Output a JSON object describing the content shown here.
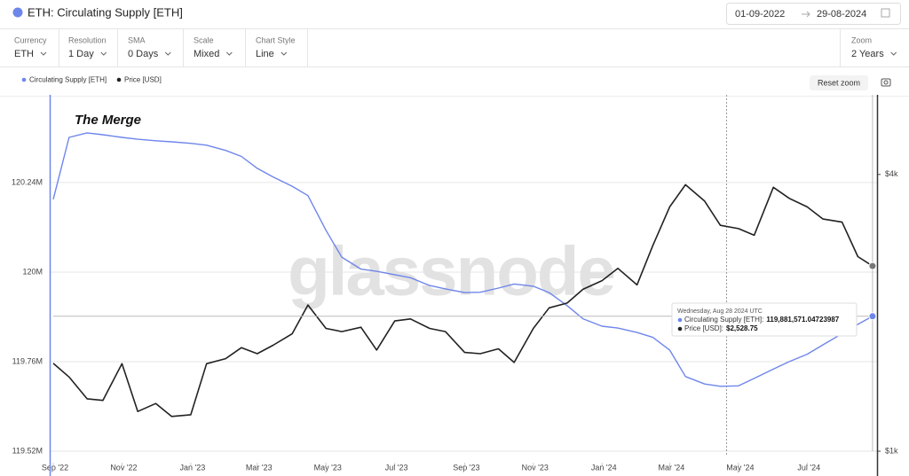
{
  "header": {
    "title": "ETH: Circulating Supply [ETH]",
    "date_from": "01-09-2022",
    "date_to": "29-08-2024"
  },
  "controls": [
    {
      "label": "Currency",
      "value": "ETH"
    },
    {
      "label": "Resolution",
      "value": "1 Day"
    },
    {
      "label": "SMA",
      "value": "0 Days"
    },
    {
      "label": "Scale",
      "value": "Mixed"
    },
    {
      "label": "Chart Style",
      "value": "Line"
    },
    {
      "label": "Zoom",
      "value": "2 Years"
    }
  ],
  "reset_zoom": "Reset zoom",
  "chart_data": {
    "type": "line",
    "annotation": "The Merge",
    "watermark": "glassnode",
    "x": [
      "2022-09-01",
      "2022-09-15",
      "2022-10-01",
      "2022-10-15",
      "2022-11-01",
      "2022-11-15",
      "2022-12-01",
      "2022-12-15",
      "2023-01-01",
      "2023-01-15",
      "2023-02-01",
      "2023-02-15",
      "2023-03-01",
      "2023-03-15",
      "2023-04-01",
      "2023-04-15",
      "2023-05-01",
      "2023-05-15",
      "2023-06-01",
      "2023-06-15",
      "2023-07-01",
      "2023-07-15",
      "2023-08-01",
      "2023-08-15",
      "2023-09-01",
      "2023-09-15",
      "2023-10-01",
      "2023-10-15",
      "2023-11-01",
      "2023-11-15",
      "2023-12-01",
      "2023-12-15",
      "2024-01-01",
      "2024-01-15",
      "2024-02-01",
      "2024-02-15",
      "2024-03-01",
      "2024-03-15",
      "2024-04-01",
      "2024-04-15",
      "2024-05-01",
      "2024-05-15",
      "2024-06-01",
      "2024-06-15",
      "2024-07-01",
      "2024-07-15",
      "2024-08-01",
      "2024-08-15",
      "2024-08-28"
    ],
    "xlim": [
      "2022-09-01",
      "2024-09-01"
    ],
    "xticks": [
      {
        "value": "2022-09-01",
        "label": "Sep '22"
      },
      {
        "value": "2022-11-01",
        "label": "Nov '22"
      },
      {
        "value": "2023-01-01",
        "label": "Jan '23"
      },
      {
        "value": "2023-03-01",
        "label": "Mar '23"
      },
      {
        "value": "2023-05-01",
        "label": "May '23"
      },
      {
        "value": "2023-07-01",
        "label": "Jul '23"
      },
      {
        "value": "2023-09-01",
        "label": "Sep '23"
      },
      {
        "value": "2023-11-01",
        "label": "Nov '23"
      },
      {
        "value": "2024-01-01",
        "label": "Jan '24"
      },
      {
        "value": "2024-03-01",
        "label": "Mar '24"
      },
      {
        "value": "2024-05-01",
        "label": "May '24"
      },
      {
        "value": "2024-07-01",
        "label": "Jul '24"
      }
    ],
    "ylim": [
      119520000,
      120475000
    ],
    "yticks": [
      {
        "value": 119520000,
        "label": "119.52M"
      },
      {
        "value": 119760000,
        "label": "119.76M"
      },
      {
        "value": 120000000,
        "label": "120M"
      },
      {
        "value": 120240000,
        "label": "120.24M"
      }
    ],
    "y2lim": [
      1000,
      5960
    ],
    "y2_log": true,
    "y2ticks": [
      {
        "value": 1000,
        "label": "$1k"
      },
      {
        "value": 4000,
        "label": "$4k"
      }
    ],
    "grid": true,
    "series": [
      {
        "name": "Circulating Supply [ETH]",
        "color": "#6e86ea",
        "values": [
          120195000,
          120361000,
          120373000,
          120368000,
          120361000,
          120356000,
          120352000,
          120349000,
          120345000,
          120340000,
          120326000,
          120310000,
          120278000,
          120255000,
          120230000,
          120205000,
          120112000,
          120040000,
          120008000,
          120002000,
          119993000,
          119985000,
          119964000,
          119955000,
          119945000,
          119946000,
          119957000,
          119968000,
          119962000,
          119945000,
          119910000,
          119875000,
          119855000,
          119850000,
          119838000,
          119825000,
          119791000,
          119720000,
          119700000,
          119694000,
          119695000,
          119715000,
          119740000,
          119760000,
          119780000,
          119805000,
          119835000,
          119860000,
          119881571.04723987
        ]
      },
      {
        "name": "Price [USD]",
        "color": "#222222",
        "axis": "y2",
        "values": [
          1553,
          1450,
          1300,
          1290,
          1550,
          1220,
          1270,
          1190,
          1200,
          1550,
          1590,
          1680,
          1630,
          1700,
          1800,
          2080,
          1850,
          1820,
          1860,
          1660,
          1920,
          1940,
          1850,
          1820,
          1640,
          1630,
          1670,
          1560,
          1850,
          2050,
          2100,
          2250,
          2350,
          2500,
          2300,
          2800,
          3400,
          3800,
          3500,
          3100,
          3050,
          2950,
          3750,
          3550,
          3400,
          3200,
          3150,
          2650,
          2528.75
        ]
      }
    ],
    "tooltip": {
      "date": "Wednesday, Aug 28 2024 UTC",
      "rows": [
        {
          "name": "Circulating Supply [ETH]:",
          "value": "119,881,571.04723987"
        },
        {
          "name": "Price [USD]:",
          "value": "$2,528.75"
        }
      ]
    }
  }
}
